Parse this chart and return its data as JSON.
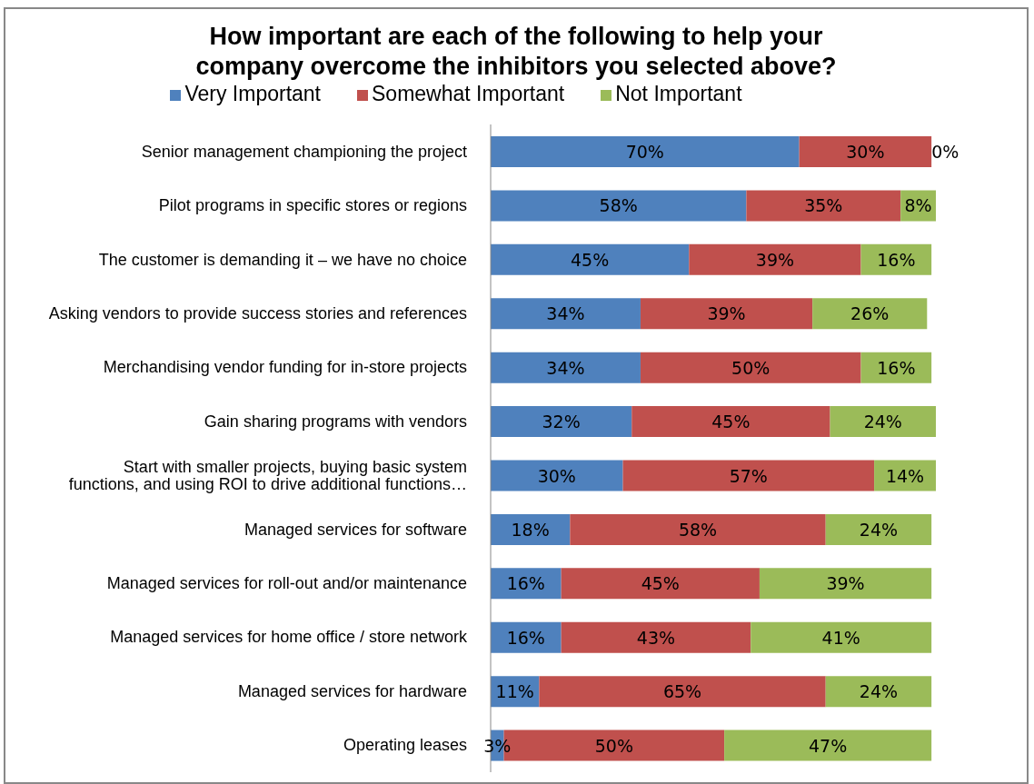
{
  "chart_data": {
    "type": "bar",
    "orientation": "horizontal",
    "stacked": true,
    "title": "How important are each of the following to help your company overcome the inhibitors you selected above?",
    "legend": "top",
    "categories": [
      "Senior management championing the project",
      "Pilot programs in specific stores or regions",
      "The customer is demanding it – we have no choice",
      "Asking vendors to provide success stories and references",
      "Merchandising vendor funding for in-store projects",
      "Gain sharing programs with vendors",
      "Start with smaller projects, buying basic system functions, and using ROI to drive additional functions…",
      "Managed services for software",
      "Managed services for roll-out and/or maintenance",
      "Managed services for home office / store network",
      "Managed services for hardware",
      "Operating leases"
    ],
    "series": [
      {
        "name": "Very Important",
        "color": "#4f81bd",
        "values": [
          70,
          58,
          45,
          34,
          34,
          32,
          30,
          18,
          16,
          16,
          11,
          3
        ],
        "value_labels": [
          "70%",
          "58%",
          "45%",
          "34%",
          "34%",
          "32%",
          "30%",
          "18%",
          "16%",
          "16%",
          "11%",
          "3%"
        ]
      },
      {
        "name": "Somewhat Important",
        "color": "#c0504d",
        "values": [
          30,
          35,
          39,
          39,
          50,
          45,
          57,
          58,
          45,
          43,
          65,
          50
        ],
        "value_labels": [
          "30%",
          "35%",
          "39%",
          "39%",
          "50%",
          "45%",
          "57%",
          "58%",
          "45%",
          "43%",
          "65%",
          "50%"
        ]
      },
      {
        "name": "Not Important",
        "color": "#9bbb59",
        "values": [
          0,
          8,
          16,
          26,
          16,
          24,
          14,
          24,
          39,
          41,
          24,
          47
        ],
        "value_labels": [
          "0%",
          "8%",
          "16%",
          "26%",
          "16%",
          "24%",
          "14%",
          "24%",
          "39%",
          "41%",
          "24%",
          "47%"
        ]
      }
    ]
  }
}
